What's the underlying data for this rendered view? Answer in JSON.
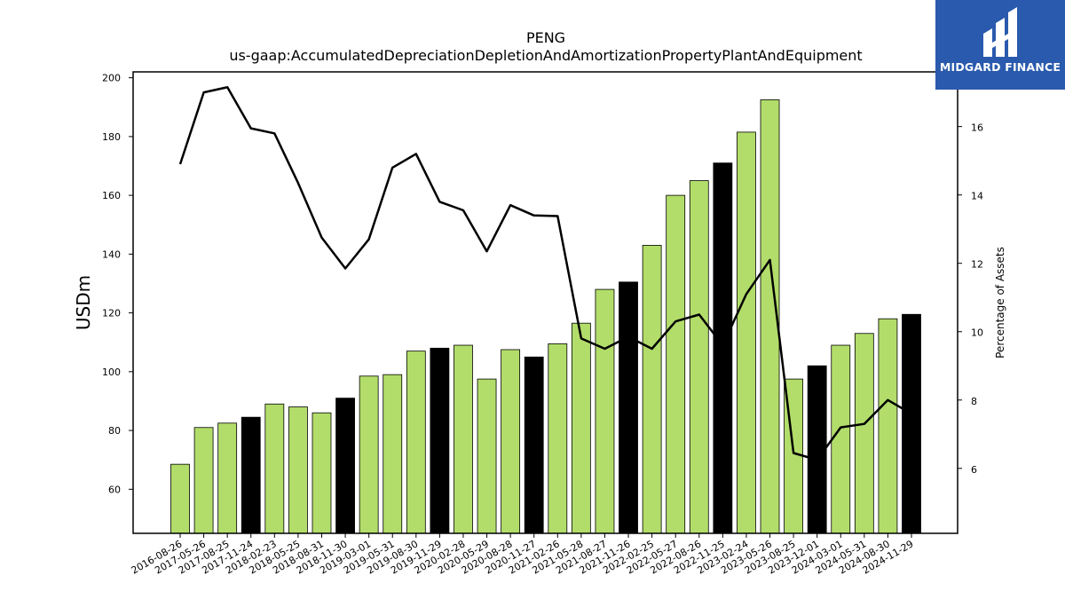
{
  "chart_data": {
    "type": "bar",
    "title": "PENG",
    "subtitle": "us-gaap:AccumulatedDepreciationDepletionAndAmortizationPropertyPlantAndEquipment",
    "ylabel": "USDm",
    "y2label": "Percentage of Assets",
    "ylim": [
      45,
      202
    ],
    "y2lim": [
      4.1,
      17.6
    ],
    "yticks": [
      60,
      80,
      100,
      120,
      140,
      160,
      180,
      200
    ],
    "y2ticks": [
      6,
      8,
      10,
      12,
      14,
      16
    ],
    "categories": [
      "2016-08-26",
      "2017-05-26",
      "2017-08-25",
      "2017-11-24",
      "2018-02-23",
      "2018-05-25",
      "2018-08-31",
      "2018-11-30",
      "2019-03-01",
      "2019-05-31",
      "2019-08-30",
      "2019-11-29",
      "2020-02-28",
      "2020-05-29",
      "2020-08-28",
      "2020-11-27",
      "2021-02-26",
      "2021-05-28",
      "2021-08-27",
      "2021-11-26",
      "2022-02-25",
      "2022-05-27",
      "2022-08-26",
      "2022-11-25",
      "2023-02-24",
      "2023-05-26",
      "2023-08-25",
      "2023-12-01",
      "2024-03-01",
      "2024-05-31",
      "2024-08-30",
      "2024-11-29"
    ],
    "series": [
      {
        "type": "bar",
        "axis": "left",
        "values": [
          68.5,
          81,
          82.5,
          84.5,
          89,
          88,
          86,
          91,
          98.5,
          99,
          107,
          108,
          109,
          97.5,
          107.5,
          105,
          109.5,
          116.5,
          128,
          130.5,
          143,
          160,
          165,
          171,
          181.5,
          192.5,
          97.5,
          102,
          109,
          113,
          118,
          119.5
        ],
        "highlight": [
          false,
          false,
          false,
          true,
          false,
          false,
          false,
          true,
          false,
          false,
          false,
          true,
          false,
          false,
          false,
          true,
          false,
          false,
          false,
          true,
          false,
          false,
          false,
          true,
          false,
          false,
          false,
          true,
          false,
          false,
          false,
          true
        ],
        "color": "#b2dd6a",
        "highlight_color": "#000000"
      },
      {
        "type": "line",
        "axis": "right",
        "values": [
          14.9,
          17.0,
          17.15,
          15.95,
          15.8,
          14.35,
          12.75,
          11.85,
          12.7,
          14.8,
          15.2,
          13.8,
          13.55,
          12.35,
          13.7,
          13.4,
          13.38,
          9.8,
          9.5,
          9.85,
          9.5,
          10.3,
          10.5,
          9.6,
          11.1,
          12.1,
          6.45,
          6.25,
          7.2,
          7.3,
          8.0,
          7.6
        ],
        "color": "#000000"
      }
    ],
    "grid": false,
    "legend": "none"
  },
  "logo": {
    "text": "MIDGARD FINANCE",
    "color": "#2a5aad"
  }
}
